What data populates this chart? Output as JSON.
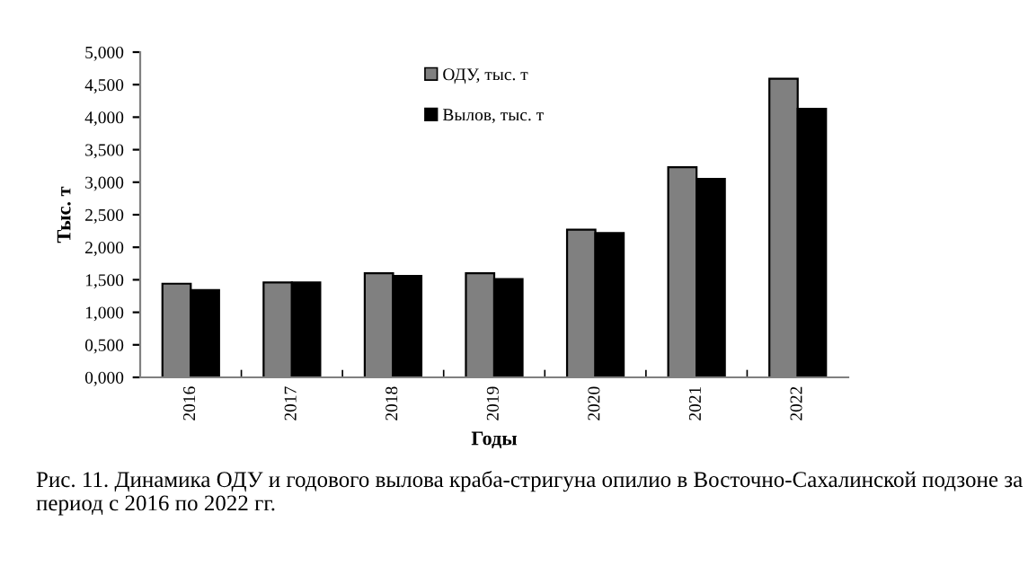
{
  "chart_data": {
    "type": "bar",
    "xlabel": "Годы",
    "ylabel": "Тыс. т",
    "categories": [
      "2016",
      "2017",
      "2018",
      "2019",
      "2020",
      "2021",
      "2022"
    ],
    "series": [
      {
        "name": "ОДУ, тыс. т",
        "color": "#808080",
        "values": [
          1.44,
          1.46,
          1.6,
          1.6,
          2.27,
          3.23,
          4.59
        ]
      },
      {
        "name": "Вылов, тыс. т",
        "color": "#000000",
        "values": [
          1.34,
          1.46,
          1.56,
          1.51,
          2.22,
          3.05,
          4.13
        ]
      }
    ],
    "ylim": [
      0,
      5
    ],
    "yticks": [
      {
        "value": 0,
        "label": "0,000"
      },
      {
        "value": 0.5,
        "label": "0,500"
      },
      {
        "value": 1,
        "label": "1,000"
      },
      {
        "value": 1.5,
        "label": "1,500"
      },
      {
        "value": 2,
        "label": "2,000"
      },
      {
        "value": 2.5,
        "label": "2,500"
      },
      {
        "value": 3,
        "label": "3,000"
      },
      {
        "value": 3.5,
        "label": "3,500"
      },
      {
        "value": 4,
        "label": "4,000"
      },
      {
        "value": 4.5,
        "label": "4,500"
      },
      {
        "value": 5,
        "label": "5,000"
      }
    ],
    "grid": false,
    "legend": "top",
    "annotations": [
      "Рис. 11. Динамика ОДУ и годового вылова краба-стригуна опилио в Восточно-Сахалинской подзоне за период с 2016 по 2022 гг."
    ]
  }
}
